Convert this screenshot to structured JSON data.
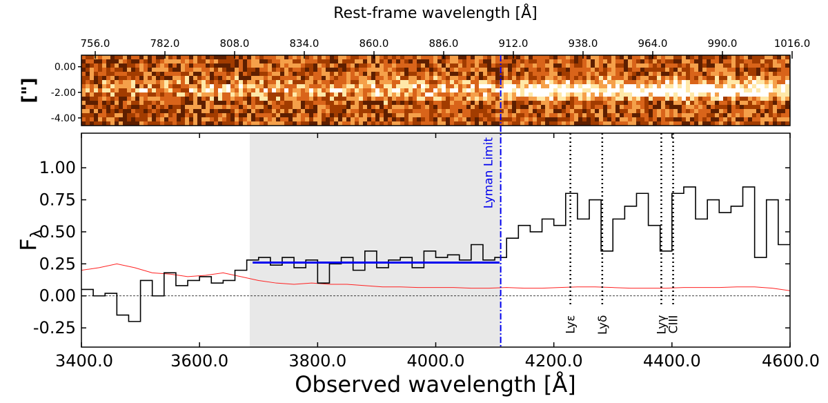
{
  "chart_data": [
    {
      "id": "spectrum_2d",
      "type": "heatmap",
      "title": "Rest-frame wavelength [Å]",
      "xlabel": "Rest-frame wavelength [Å]",
      "ylabel": "[\"]",
      "x_ticks": [
        "756.0",
        "782.0",
        "808.0",
        "834.0",
        "860.0",
        "886.0",
        "912.0",
        "938.0",
        "964.0",
        "990.0",
        "1016.0"
      ],
      "x_tick_values": [
        756,
        782,
        808,
        834,
        860,
        886,
        912,
        938,
        964,
        990,
        1016
      ],
      "y_ticks": [
        "0.00",
        "-2.00",
        "-4.00"
      ],
      "y_tick_values": [
        0,
        -2,
        -4
      ],
      "ylim": [
        -4.6,
        0.9
      ],
      "trace_center": -1.8,
      "colormap": [
        "#5e1f00",
        "#a23c00",
        "#d9641a",
        "#f5a04a",
        "#ffe8a8",
        "#ffffff"
      ]
    },
    {
      "id": "spectrum_1d",
      "type": "line",
      "xlabel": "Observed wavelength [Å]",
      "ylabel": "F",
      "ylabel_sub": "λ",
      "xlim": [
        3400,
        4600
      ],
      "ylim": [
        -0.4,
        1.27
      ],
      "x_ticks": [
        "3400.0",
        "3600.0",
        "3800.0",
        "4000.0",
        "4200.0",
        "4400.0",
        "4600.0"
      ],
      "x_tick_values": [
        3400,
        3600,
        3800,
        4000,
        4200,
        4400,
        4600
      ],
      "y_ticks": [
        "-0.25",
        "0.00",
        "0.25",
        "0.50",
        "0.75",
        "1.00"
      ],
      "y_tick_values": [
        -0.25,
        0,
        0.25,
        0.5,
        0.75,
        1.0
      ],
      "shaded_region": [
        3685,
        4110
      ],
      "mean_flux_line": {
        "x": [
          3690,
          4108
        ],
        "y": 0.26,
        "color": "#0000ee"
      },
      "lyman_limit": {
        "x": 4110,
        "label": "Lyman Limit",
        "color": "#0000ee"
      },
      "zero_line": 0,
      "lines": [
        {
          "label": "Lyε",
          "x": 4228
        },
        {
          "label": "Lyδ",
          "x": 4282
        },
        {
          "label": "Lyγ",
          "x": 4382
        },
        {
          "label": "CIII",
          "x": 4402
        }
      ],
      "series": [
        {
          "name": "flux",
          "color": "#000000",
          "step": true,
          "x": [
            3400,
            3420,
            3440,
            3460,
            3480,
            3500,
            3520,
            3540,
            3560,
            3580,
            3600,
            3620,
            3640,
            3660,
            3680,
            3700,
            3720,
            3740,
            3760,
            3780,
            3800,
            3820,
            3840,
            3860,
            3880,
            3900,
            3920,
            3940,
            3960,
            3980,
            4000,
            4020,
            4040,
            4060,
            4080,
            4100,
            4120,
            4140,
            4160,
            4180,
            4200,
            4220,
            4240,
            4260,
            4280,
            4300,
            4320,
            4340,
            4360,
            4380,
            4400,
            4420,
            4440,
            4460,
            4480,
            4500,
            4520,
            4540,
            4560,
            4580,
            4600
          ],
          "y": [
            0.05,
            0.0,
            0.02,
            -0.15,
            -0.2,
            0.12,
            0.0,
            0.18,
            0.08,
            0.12,
            0.15,
            0.1,
            0.12,
            0.2,
            0.28,
            0.3,
            0.24,
            0.3,
            0.22,
            0.28,
            0.1,
            0.25,
            0.3,
            0.2,
            0.35,
            0.22,
            0.28,
            0.3,
            0.22,
            0.35,
            0.3,
            0.32,
            0.28,
            0.4,
            0.28,
            0.3,
            0.45,
            0.55,
            0.5,
            0.6,
            0.55,
            0.8,
            0.6,
            0.75,
            0.35,
            0.6,
            0.7,
            0.8,
            0.55,
            0.35,
            0.8,
            0.85,
            0.6,
            0.75,
            0.65,
            0.7,
            0.85,
            0.3,
            0.75,
            0.4,
            0.8
          ]
        },
        {
          "name": "error",
          "color": "#ff2020",
          "step": false,
          "x": [
            3400,
            3430,
            3460,
            3490,
            3520,
            3550,
            3580,
            3610,
            3640,
            3670,
            3700,
            3730,
            3760,
            3790,
            3820,
            3850,
            3880,
            3910,
            3940,
            3970,
            4000,
            4030,
            4060,
            4090,
            4120,
            4150,
            4180,
            4210,
            4240,
            4270,
            4300,
            4330,
            4360,
            4390,
            4420,
            4450,
            4480,
            4510,
            4540,
            4570,
            4600
          ],
          "y": [
            0.2,
            0.22,
            0.25,
            0.22,
            0.18,
            0.17,
            0.15,
            0.16,
            0.18,
            0.15,
            0.12,
            0.1,
            0.09,
            0.1,
            0.09,
            0.09,
            0.08,
            0.07,
            0.07,
            0.065,
            0.065,
            0.065,
            0.06,
            0.06,
            0.065,
            0.06,
            0.06,
            0.065,
            0.07,
            0.07,
            0.065,
            0.06,
            0.06,
            0.06,
            0.065,
            0.065,
            0.065,
            0.07,
            0.07,
            0.06,
            0.04
          ]
        }
      ]
    }
  ]
}
